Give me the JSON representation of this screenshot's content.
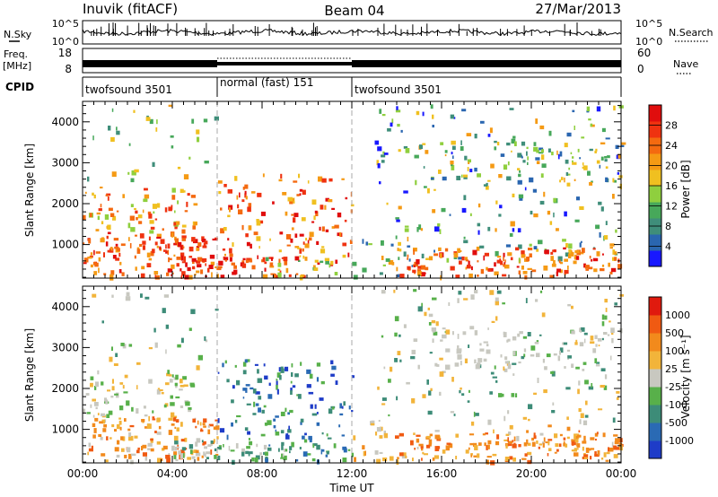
{
  "header": {
    "radar": "Inuvik (fitACF)",
    "beam": "Beam 04",
    "date": "27/Mar/2013"
  },
  "noise_panel": {
    "left_label": "N.Sky",
    "left_ticks": [
      "10^5",
      "10^0"
    ],
    "right_label": "N.Search",
    "right_ticks": [
      "10^5",
      "10^0"
    ]
  },
  "freq_panel": {
    "left_label_1": "Freq.",
    "left_label_2": "[MHz]",
    "left_ticks": [
      "18",
      "8"
    ],
    "right_label": "Nave",
    "right_ticks": [
      "60",
      "0"
    ]
  },
  "cpid": {
    "label": "CPID",
    "segments": [
      {
        "name": "twofsound 3501",
        "start": 0,
        "end": 6
      },
      {
        "name": "normal (fast) 151",
        "start": 6,
        "end": 12
      },
      {
        "name": "twofsound 3501",
        "start": 12,
        "end": 24
      }
    ]
  },
  "x_axis": {
    "label": "Time UT",
    "ticks": [
      "00:00",
      "04:00",
      "08:00",
      "12:00",
      "16:00",
      "20:00",
      "00:00"
    ],
    "range_hours": [
      0,
      24
    ]
  },
  "chart_data": [
    {
      "type": "heatmap",
      "name": "power",
      "ylabel": "Slant Range [km]",
      "yticks": [
        "1000",
        "2000",
        "3000",
        "4000"
      ],
      "ytick_values": [
        1000,
        2000,
        3000,
        4000
      ],
      "ylim": [
        180,
        4500
      ],
      "colorbar": {
        "label": "Power [dB]",
        "ticks": [
          "4",
          "8",
          "12",
          "16",
          "20",
          "24",
          "28"
        ],
        "tick_values": [
          4,
          8,
          12,
          16,
          20,
          24,
          28
        ],
        "range": [
          0,
          32
        ],
        "colors": [
          "#1818ff",
          "#2a66b0",
          "#3f8e7a",
          "#47a85a",
          "#8fcf3e",
          "#f0c020",
          "#f59a14",
          "#f46a10",
          "#ef3210",
          "#e00d0d"
        ]
      }
    },
    {
      "type": "heatmap",
      "name": "velocity",
      "ylabel": "Slant Range [km]",
      "yticks": [
        "1000",
        "2000",
        "3000",
        "4000"
      ],
      "ytick_values": [
        1000,
        2000,
        3000,
        4000
      ],
      "ylim": [
        180,
        4500
      ],
      "colorbar": {
        "label": "Velocity [m s⁻¹]",
        "ticks": [
          "1000",
          "500",
          "100",
          "25",
          "-25",
          "-100",
          "-500",
          "-1000"
        ],
        "colors": [
          "#1e3cc8",
          "#2a6ab4",
          "#3d8c78",
          "#58b04a",
          "#c8c8c0",
          "#f2b43a",
          "#f28a1c",
          "#f05a12",
          "#e01a0e"
        ]
      }
    }
  ]
}
